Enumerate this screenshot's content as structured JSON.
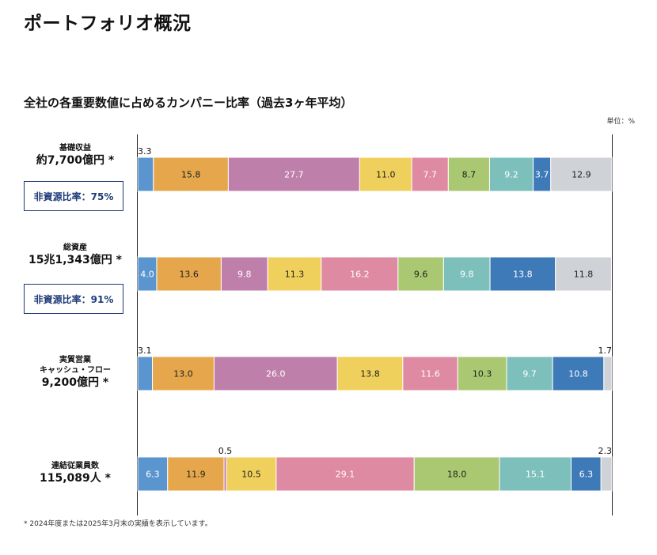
{
  "page_title": "ポートフォリオ概況",
  "chart_title": "全社の各重要数値に占めるカンパニー比率（過去3ヶ年平均）",
  "unit_label": "単位：%",
  "footnote": "* 2024年度または2025年3月末の実績を表示しています。",
  "colors": [
    "#5b95cf",
    "#e6a74c",
    "#bf7fab",
    "#f0d05c",
    "#de8aa2",
    "#a9c871",
    "#7dbfbb",
    "#3f7ab8",
    "#cfd2d6"
  ],
  "chart_data": {
    "type": "bar",
    "orientation": "horizontal-stacked-100",
    "xlim": [
      0,
      100
    ],
    "grid": false,
    "rows": [
      {
        "name": "基礎収益",
        "value_label": "約7,700億円 *",
        "badge": "非資源比率：75%",
        "segments": [
          3.3,
          15.8,
          27.7,
          11.0,
          7.7,
          8.7,
          9.2,
          3.7,
          12.9
        ],
        "labels": [
          "3.3",
          "15.8",
          "27.7",
          "11.0",
          "7.7",
          "8.7",
          "9.2",
          "3.7",
          "12.9"
        ]
      },
      {
        "name": "総資産",
        "value_label": "15兆1,343億円 *",
        "badge": "非資源比率：91%",
        "segments": [
          4.0,
          13.6,
          9.8,
          11.3,
          16.2,
          9.6,
          9.8,
          13.8,
          11.8
        ],
        "labels": [
          "4.0",
          "13.6",
          "9.8",
          "11.3",
          "16.2",
          "9.6",
          "9.8",
          "13.8",
          "11.8"
        ]
      },
      {
        "name": "実質営業\nキャッシュ・フロー",
        "value_label": "9,200億円 *",
        "badge": "",
        "segments": [
          3.1,
          13.0,
          26.0,
          13.8,
          11.6,
          10.3,
          9.7,
          10.8,
          1.7
        ],
        "labels": [
          "3.1",
          "13.0",
          "26.0",
          "13.8",
          "11.6",
          "10.3",
          "9.7",
          "10.8",
          "1.7"
        ]
      },
      {
        "name": "連結従業員数",
        "value_label": "115,089人 *",
        "badge": "",
        "segments": [
          6.3,
          11.9,
          0.5,
          10.5,
          29.1,
          18.0,
          15.1,
          6.3,
          2.3
        ],
        "labels": [
          "6.3",
          "11.9",
          "0.5",
          "10.5",
          "29.1",
          "18.0",
          "15.1",
          "6.3",
          "2.3"
        ]
      }
    ]
  }
}
